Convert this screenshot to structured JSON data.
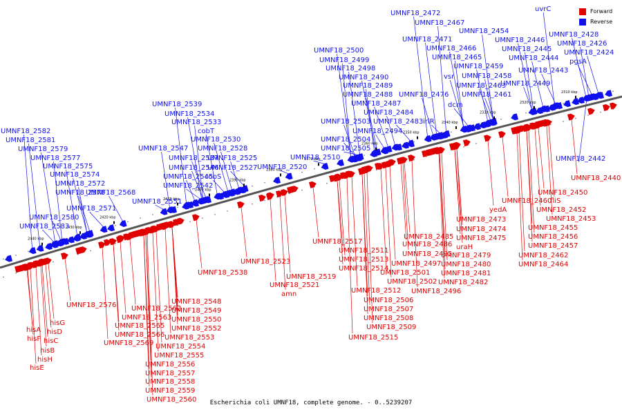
{
  "caption": "Escherichia coli UMNF18, complete genome. - 0..5239207",
  "legend": [
    {
      "label": "Forward",
      "color": "#e00000"
    },
    {
      "label": "Reverse",
      "color": "#1010ee"
    }
  ],
  "colors": {
    "forward": "#e00000",
    "reverse": "#1010ee",
    "backbone": "#555555"
  },
  "ticks": [
    "2440 kbp",
    "2430 kbp",
    "2420 kbp",
    "2410 kbp",
    "2400 kbp",
    "2390 kbp",
    "2380 kbp",
    "2370 kbp",
    "2360 kbp",
    "2350 kbp",
    "2340 kbp",
    "2330 kbp",
    "2320 kbp",
    "2310 kbp"
  ],
  "reverse_labels": [
    "UMNF18_2582",
    "UMNF18_2581",
    "UMNF18_2579",
    "UMNF18_2577",
    "UMNF18_2575",
    "UMNF18_2574",
    "UMNF18_2572",
    "UMNF18_2578",
    "UMNF18_2571",
    "UMNF18_2580",
    "UMNF18_2583",
    "UMNF18_2568",
    "UMNF18_2551",
    "UMNF18_2539",
    "UMNF18_2534",
    "UMNF18_2533",
    "cobT",
    "UMNF18_2530",
    "UMNF18_2547",
    "UMNF18_2528",
    "UMNF18_2537",
    "UMNF18_2525",
    "UMNF18_2546",
    "UMNF18_2527",
    "UMNF18_2545",
    "cobS",
    "UMNF18_2542",
    "UMNF18_2520",
    "UMNF18_2510",
    "UMNF18_2500",
    "UMNF18_2499",
    "UMNF18_2498",
    "UMNF18_2490",
    "UMNF18_2489",
    "UMNF18_2488",
    "UMNF18_2487",
    "UMNF18_2484",
    "UMNF18_2503",
    "UMNF18_2483",
    "UMNF18_2494",
    "UMNF18_2504",
    "UMNF18_2505",
    "irlR",
    "UMNF18_2476",
    "UMNF18_2472",
    "UMNF18_2467",
    "UMNF18_2471",
    "UMNF18_2466",
    "UMNF18_2465",
    "UMNF18_2459",
    "vsr",
    "UMNF18_2458",
    "UMNF18_2463",
    "dcm",
    "UMNF18_2461",
    "UMNF18_2454",
    "UMNF18_2446",
    "UMNF18_2445",
    "UMNF18_2444",
    "UMNF18_2443",
    "UMNF18_2449",
    "uvrC",
    "UMNF18_2428",
    "UMNF18_2426",
    "UMNF18_2424",
    "pgsA",
    "UMNF18_2442"
  ],
  "forward_labels": [
    "hisG",
    "hisA",
    "hisD",
    "hisF",
    "hisC",
    "hisB",
    "hisH",
    "hisE",
    "UMNF18_2576",
    "UMNF18_2548",
    "UMNF18_2562",
    "UMNF18_2549",
    "UMNF18_2563",
    "UMNF18_2550",
    "UMNF18_2565",
    "UMNF18_2552",
    "UMNF18_2566",
    "UMNF18_2553",
    "UMNF18_2569",
    "UMNF18_2554",
    "UMNF18_2555",
    "UMNF18_2556",
    "UMNF18_2557",
    "UMNF18_2558",
    "UMNF18_2559",
    "UMNF18_2560",
    "UMNF18_2538",
    "UMNF18_2523",
    "UMNF18_2519",
    "UMNF18_2521",
    "amn",
    "UMNF18_2517",
    "UMNF18_2511",
    "UMNF18_2513",
    "UMNF18_2514",
    "UMNF18_2501",
    "UMNF18_2502",
    "UMNF18_2512",
    "UMNF18_2506",
    "UMNF18_2507",
    "UMNF18_2508",
    "UMNF18_2509",
    "UMNF18_2515",
    "UMNF18_2485",
    "UMNF18_2486",
    "UMNF18_2495",
    "UMNF18_2497",
    "UMNF18_2496",
    "UMNF18_2473",
    "UMNF18_2474",
    "UMNF18_2475",
    "uraH",
    "UMNF18_2479",
    "UMNF18_2480",
    "UMNF18_2481",
    "UMNF18_2482",
    "yedA",
    "UMNF18_2460",
    "fliS",
    "UMNF18_2450",
    "UMNF18_2452",
    "UMNF18_2453",
    "UMNF18_2455",
    "UMNF18_2456",
    "UMNF18_2457",
    "UMNF18_2462",
    "UMNF18_2464",
    "UMNF18_2440"
  ]
}
